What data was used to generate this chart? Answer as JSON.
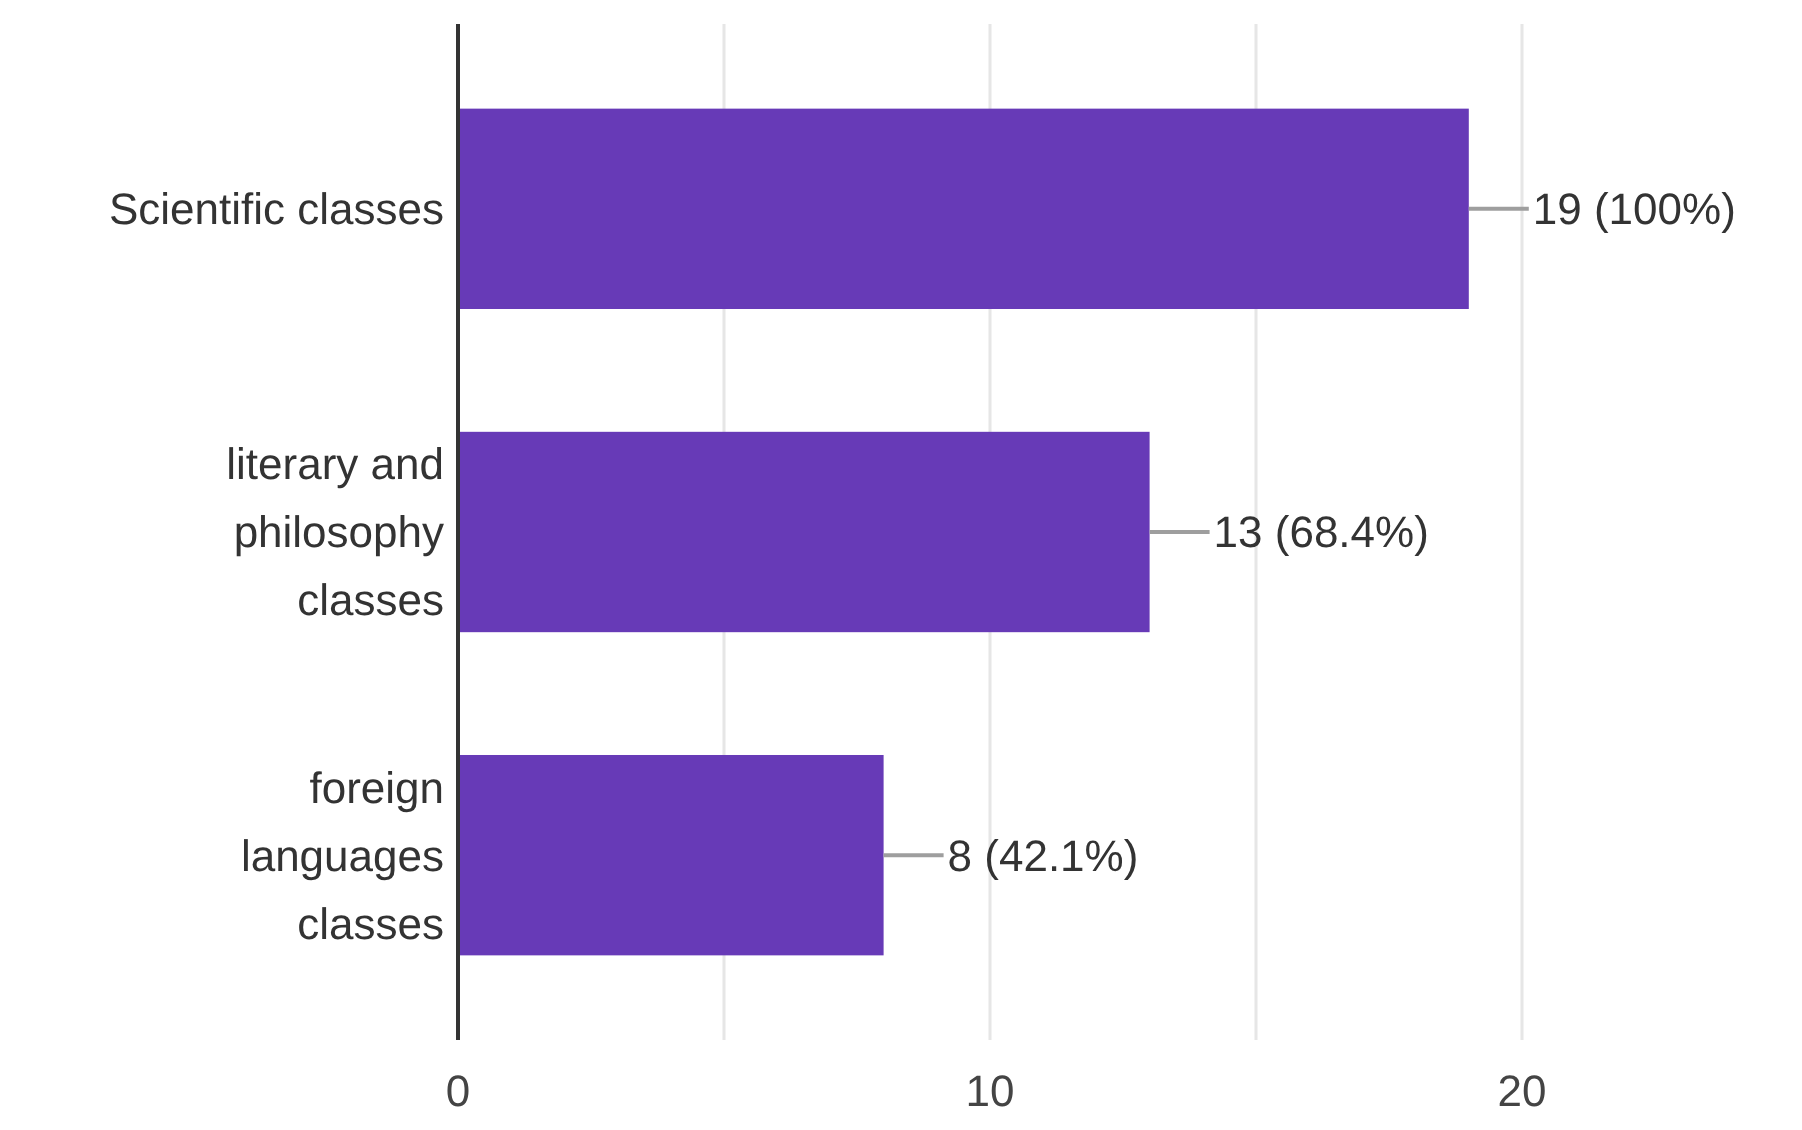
{
  "chart_data": {
    "type": "bar",
    "orientation": "horizontal",
    "categories": [
      "Scientific classes",
      "literary and philosophy classes",
      "foreign languages classes"
    ],
    "values": [
      19,
      13,
      8
    ],
    "color": "#673ab7",
    "value_labels": [
      "19 (100%)",
      "13 (68.4%)",
      "8 (42.1%)"
    ],
    "xlim": [
      0,
      20
    ],
    "xticks": [
      0,
      {
        "value": 5,
        "label": null
      },
      10,
      {
        "value": 15,
        "label": null
      },
      20
    ],
    "grid": "x"
  }
}
